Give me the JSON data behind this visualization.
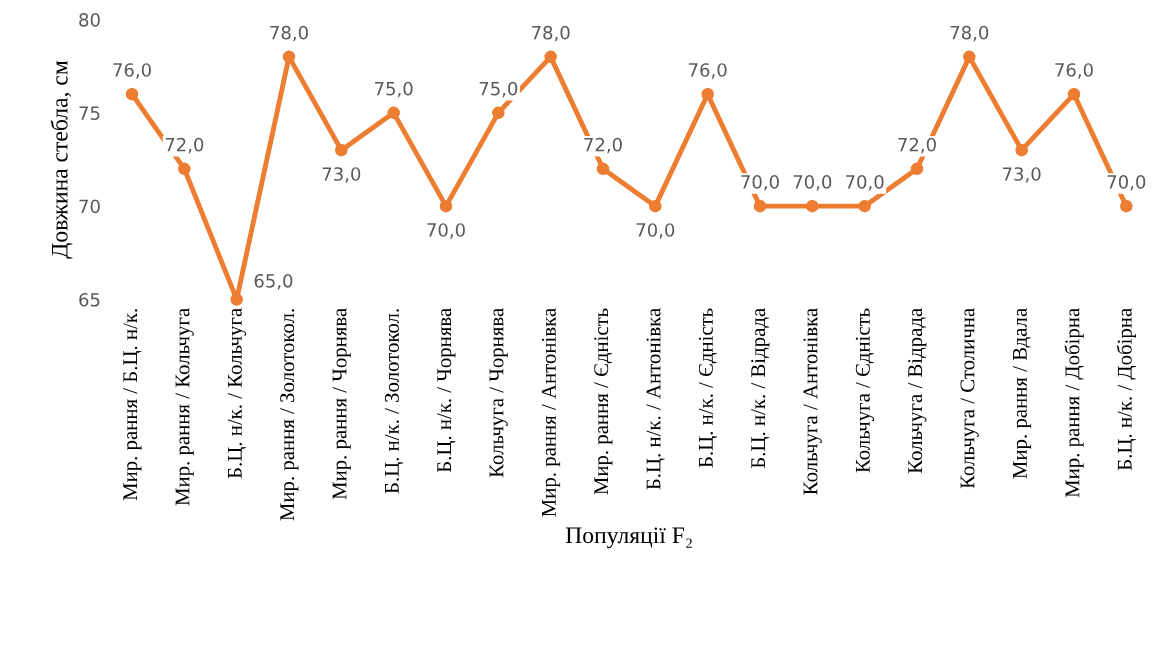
{
  "chart_data": {
    "type": "line",
    "categories": [
      "Мир. рання / Б.Ц. н/к.",
      "Мир. рання / Кольчуга",
      "Б.Ц. н/к. / Кольчуга",
      "Мир. рання / Золотокол.",
      "Мир. рання / Чорнява",
      "Б.Ц. н/к. / Золотокол.",
      "Б.Ц. н/к. / Чорнява",
      "Кольчуга / Чорнява",
      "Мир. рання / Антонівка",
      "Мир. рання / Єдність",
      "Б.Ц. н/к. / Антонівка",
      "Б.Ц. н/к. / Єдність",
      "Б.Ц. н/к. / Відрада",
      "Кольчуга / Антонівка",
      "Кольчуга / Єдність",
      "Кольчуга / Відрада",
      "Кольчуга / Столична",
      "Мир. рання / Вдала",
      "Мир. рання / Добірна",
      "Б.Ц. н/к. / Добірна"
    ],
    "values": [
      76,
      72,
      65,
      78,
      73,
      75,
      70,
      75,
      78,
      72,
      70,
      76,
      70,
      70,
      70,
      72,
      78,
      73,
      76,
      70
    ],
    "value_labels": [
      "76,0",
      "72,0",
      "65,0",
      "78,0",
      "73,0",
      "75,0",
      "70,0",
      "75,0",
      "78,0",
      "72,0",
      "70,0",
      "76,0",
      "70,0",
      "70,0",
      "70,0",
      "72,0",
      "78,0",
      "73,0",
      "76,0",
      "70,0"
    ],
    "color": "#ed7d31",
    "xlabel": "Популяції F₂",
    "ylabel": "Довжина стебла, см",
    "ylim": [
      65,
      80
    ],
    "yticks": [
      65,
      70,
      75,
      80
    ],
    "grid": false,
    "legend": false,
    "marker": "circle",
    "line_style": "solid"
  }
}
